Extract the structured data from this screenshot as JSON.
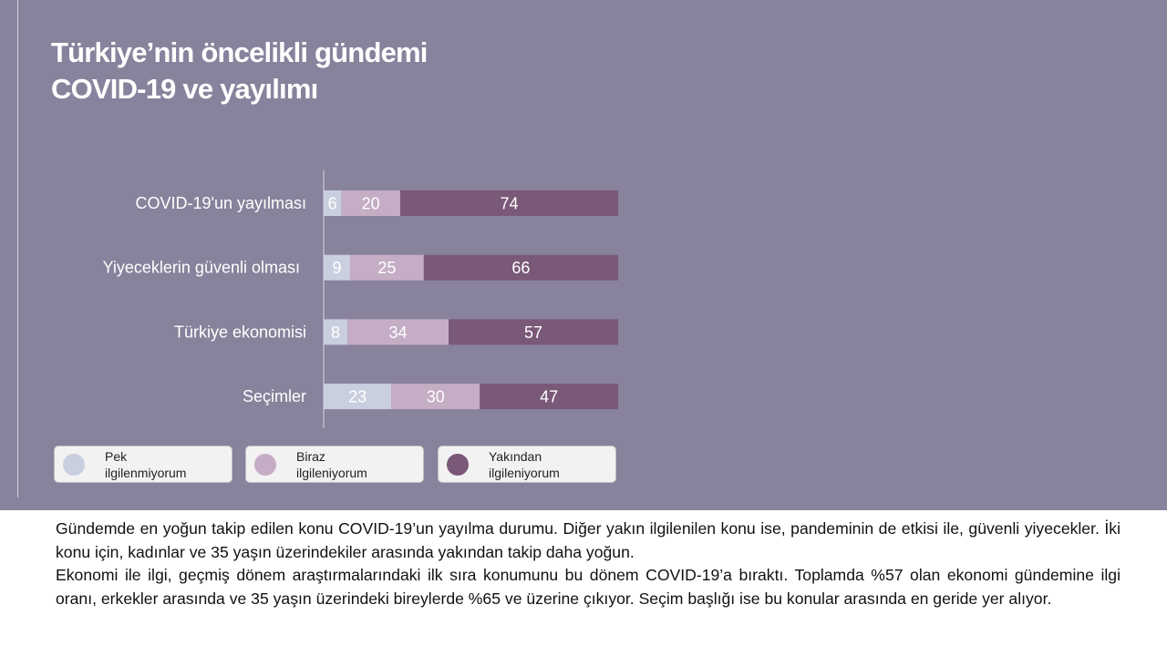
{
  "chart_data": {
    "type": "bar",
    "orientation": "horizontal",
    "stacked": true,
    "title": "Türkiye’nin öncelikli gündemi COVID-19 ve yayılımı",
    "title_lines": [
      "Türkiye’nin öncelikli gündemi",
      "COVID-19 ve yayılımı"
    ],
    "categories": [
      "COVID-19'un yayılması",
      "Yiyeceklerin güvenli olması",
      "Türkiye ekonomisi",
      "Seçimler"
    ],
    "series": [
      {
        "name": "Pek ilgilenmiyorum",
        "values": [
          6,
          9,
          8,
          23
        ],
        "color": "#cacfdf"
      },
      {
        "name": "Biraz ilgileniyorum",
        "values": [
          20,
          25,
          34,
          30
        ],
        "color": "#c5adc5"
      },
      {
        "name": "Yakından ilgileniyorum",
        "values": [
          74,
          66,
          57,
          47
        ],
        "color": "#7a5878"
      }
    ],
    "legend_placement": "bottom",
    "grid": false
  },
  "legend": [
    {
      "line1": "Pek",
      "line2": "ilgilenmiyorum"
    },
    {
      "line1": "Biraz",
      "line2": "ilgileniyorum"
    },
    {
      "line1": "Yakından",
      "line2": "ilgileniyorum"
    }
  ],
  "description": {
    "p1": "Gündemde en yoğun takip edilen konu COVID-19’un yayılma durumu. Diğer yakın ilgilenilen konu ise, pandeminin de etkisi ile, güvenli yiyecekler. İki konu için, kadınlar ve 35 yaşın üzerindekiler arasında yakından takip daha yoğun.",
    "p2": "Ekonomi ile ilgi, geçmiş dönem araştırmalarındaki ilk sıra konumunu bu dönem COVID-19’a bıraktı. Toplamda %57 olan ekonomi gündemine ilgi oranı, erkekler arasında ve 35 yaşın üzerindeki bireylerde %65 ve üzerine çıkıyor. Seçim başlığı ise bu konular arasında en geride yer alıyor."
  },
  "colors": {
    "background": "#88829c",
    "text": "#ffffff"
  }
}
